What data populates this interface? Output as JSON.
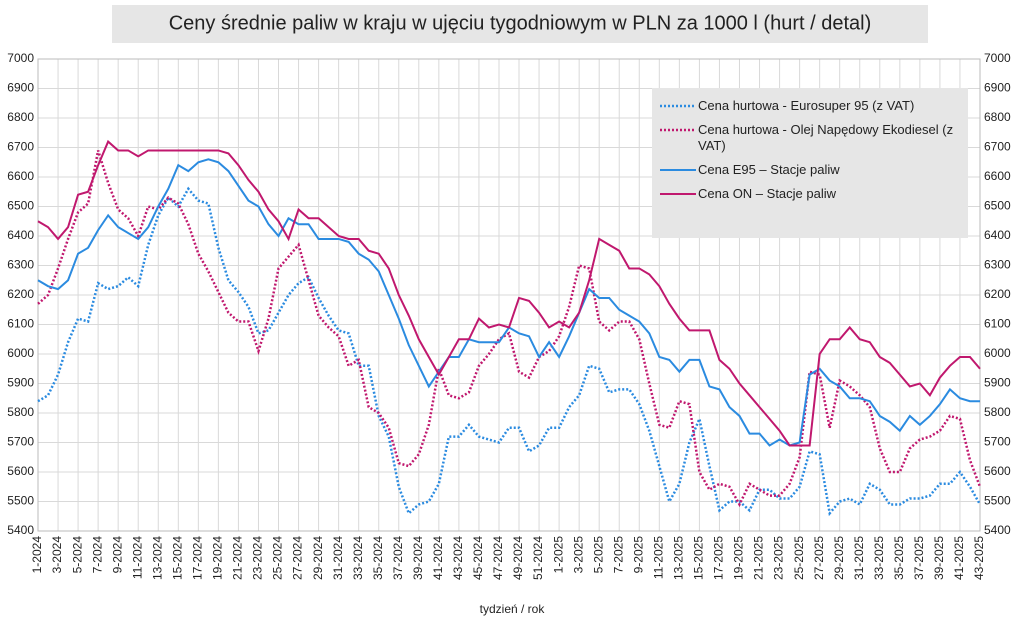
{
  "chart_data": {
    "type": "line",
    "title": "Ceny średnie paliw w kraju w ujęciu tygodniowym w PLN za 1000 l (hurt / detal)",
    "x_label": "tydzień / rok",
    "categories": [
      "1-2024",
      null,
      "3-2024",
      null,
      "5-2024",
      null,
      "7-2024",
      null,
      "9-2024",
      null,
      "11-2024",
      null,
      "13-2024",
      null,
      "15-2024",
      null,
      "17-2024",
      null,
      "19-2024",
      null,
      "21-2024",
      null,
      "23-2024",
      null,
      "25-2024",
      null,
      "27-2024",
      null,
      "29-2024",
      null,
      "31-2024",
      null,
      "33-2024",
      null,
      "35-2024",
      null,
      "37-2024",
      null,
      "39-2024",
      null,
      "41-2024",
      null,
      "43-2024",
      null,
      "45-2024",
      null,
      "47-2024",
      null,
      "49-2024",
      null,
      "51-2024",
      null,
      "1-2025",
      null,
      "3-2025",
      null,
      "5-2025",
      null,
      "7-2025",
      null,
      "9-2025",
      null,
      "11-2025",
      null,
      "13-2025",
      null,
      "15-2025",
      null,
      "17-2025",
      null,
      "19-2025",
      null,
      "21-2025",
      null,
      "23-2025",
      null,
      "25-2025",
      null,
      "27-2025",
      null,
      "29-2025",
      null,
      "31-2025",
      null,
      "33-2025",
      null,
      "35-2025",
      null,
      "37-2025",
      null,
      "39-2025",
      null,
      "41-2025",
      null,
      "43-2025"
    ],
    "series": [
      {
        "name": "Cena hurtowa  - Eurosuper 95 (z VAT)",
        "color": "#2b8be0",
        "dashed": true,
        "values": [
          5840,
          5860,
          5930,
          6040,
          6120,
          6110,
          6240,
          6220,
          6230,
          6260,
          6230,
          6370,
          6470,
          6530,
          6500,
          6560,
          6520,
          6510,
          6360,
          6250,
          6210,
          6160,
          6070,
          6080,
          6140,
          6200,
          6240,
          6260,
          6190,
          6130,
          6080,
          6070,
          5960,
          5960,
          5790,
          5720,
          5550,
          5460,
          5490,
          5500,
          5560,
          5720,
          5720,
          5760,
          5720,
          5710,
          5700,
          5750,
          5750,
          5670,
          5690,
          5750,
          5750,
          5820,
          5860,
          5960,
          5950,
          5870,
          5880,
          5880,
          5830,
          5740,
          5620,
          5500,
          5560,
          5700,
          5780,
          5620,
          5470,
          5500,
          5500,
          5470,
          5540,
          5540,
          5510,
          5510,
          5550,
          5670,
          5660,
          5460,
          5500,
          5510,
          5490,
          5560,
          5540,
          5490,
          5490,
          5510,
          5510,
          5520,
          5560,
          5560,
          5600,
          5550,
          5490
        ]
      },
      {
        "name": "Cena hurtowa - Olej Napędowy Ekodiesel (z VAT)",
        "color": "#c0186e",
        "dashed": true,
        "values": [
          6170,
          6200,
          6290,
          6390,
          6480,
          6510,
          6690,
          6580,
          6490,
          6460,
          6400,
          6500,
          6490,
          6530,
          6510,
          6440,
          6340,
          6280,
          6210,
          6140,
          6110,
          6110,
          6010,
          6120,
          6290,
          6330,
          6370,
          6250,
          6130,
          6090,
          6060,
          5960,
          5980,
          5820,
          5800,
          5750,
          5630,
          5620,
          5660,
          5760,
          5950,
          5860,
          5850,
          5870,
          5960,
          6000,
          6050,
          6070,
          5940,
          5920,
          5990,
          6010,
          6060,
          6160,
          6300,
          6290,
          6110,
          6080,
          6110,
          6110,
          6050,
          5900,
          5760,
          5750,
          5840,
          5830,
          5600,
          5540,
          5560,
          5550,
          5490,
          5560,
          5540,
          5520,
          5520,
          5560,
          5650,
          5940,
          5930,
          5750,
          5910,
          5890,
          5860,
          5820,
          5680,
          5600,
          5600,
          5680,
          5710,
          5720,
          5740,
          5790,
          5780,
          5640,
          5550
        ]
      },
      {
        "name": "Cena E95 – Stacje paliw",
        "color": "#2b8be0",
        "dashed": false,
        "values": [
          6250,
          6230,
          6220,
          6250,
          6340,
          6360,
          6420,
          6470,
          6430,
          6410,
          6390,
          6430,
          6500,
          6560,
          6640,
          6620,
          6650,
          6660,
          6650,
          6620,
          6570,
          6520,
          6500,
          6440,
          6400,
          6460,
          6440,
          6440,
          6390,
          6390,
          6390,
          6380,
          6340,
          6320,
          6280,
          6200,
          6120,
          6030,
          5960,
          5890,
          5940,
          5990,
          5990,
          6050,
          6040,
          6040,
          6040,
          6090,
          6070,
          6060,
          5990,
          6040,
          5990,
          6060,
          6140,
          6220,
          6190,
          6190,
          6150,
          6130,
          6110,
          6070,
          5990,
          5980,
          5940,
          5980,
          5980,
          5890,
          5880,
          5820,
          5790,
          5730,
          5730,
          5690,
          5710,
          5690,
          5700,
          5930,
          5950,
          5910,
          5890,
          5850,
          5850,
          5840,
          5790,
          5770,
          5740,
          5790,
          5760,
          5790,
          5830,
          5880,
          5850,
          5840,
          5840
        ]
      },
      {
        "name": "Cena ON – Stacje paliw",
        "color": "#c0186e",
        "dashed": false,
        "values": [
          6450,
          6430,
          6390,
          6430,
          6540,
          6550,
          6640,
          6720,
          6690,
          6690,
          6670,
          6690,
          6690,
          6690,
          6690,
          6690,
          6690,
          6690,
          6690,
          6680,
          6640,
          6590,
          6550,
          6490,
          6450,
          6390,
          6490,
          6460,
          6460,
          6430,
          6400,
          6390,
          6390,
          6350,
          6340,
          6290,
          6200,
          6130,
          6050,
          5990,
          5930,
          5990,
          6050,
          6050,
          6120,
          6090,
          6100,
          6090,
          6190,
          6180,
          6140,
          6090,
          6110,
          6090,
          6140,
          6250,
          6390,
          6370,
          6350,
          6290,
          6290,
          6270,
          6230,
          6170,
          6120,
          6080,
          6080,
          6080,
          5980,
          5950,
          5900,
          5860,
          5820,
          5780,
          5740,
          5690,
          5690,
          5690,
          6000,
          6050,
          6050,
          6090,
          6050,
          6040,
          5990,
          5970,
          5930,
          5890,
          5900,
          5860,
          5920,
          5960,
          5990,
          5990,
          5950
        ]
      }
    ],
    "ylim": [
      5400,
      7000
    ],
    "yticks": [
      5400,
      5500,
      5600,
      5700,
      5800,
      5900,
      6000,
      6100,
      6200,
      6300,
      6400,
      6500,
      6600,
      6700,
      6800,
      6900,
      7000
    ],
    "y2lim": [
      5400,
      7000
    ],
    "y2ticks": [
      5400,
      5500,
      5600,
      5700,
      5800,
      5900,
      6000,
      6100,
      6200,
      6300,
      6400,
      6500,
      6600,
      6700,
      6800,
      6900,
      7000
    ],
    "grid": true,
    "legend": "top-right"
  }
}
